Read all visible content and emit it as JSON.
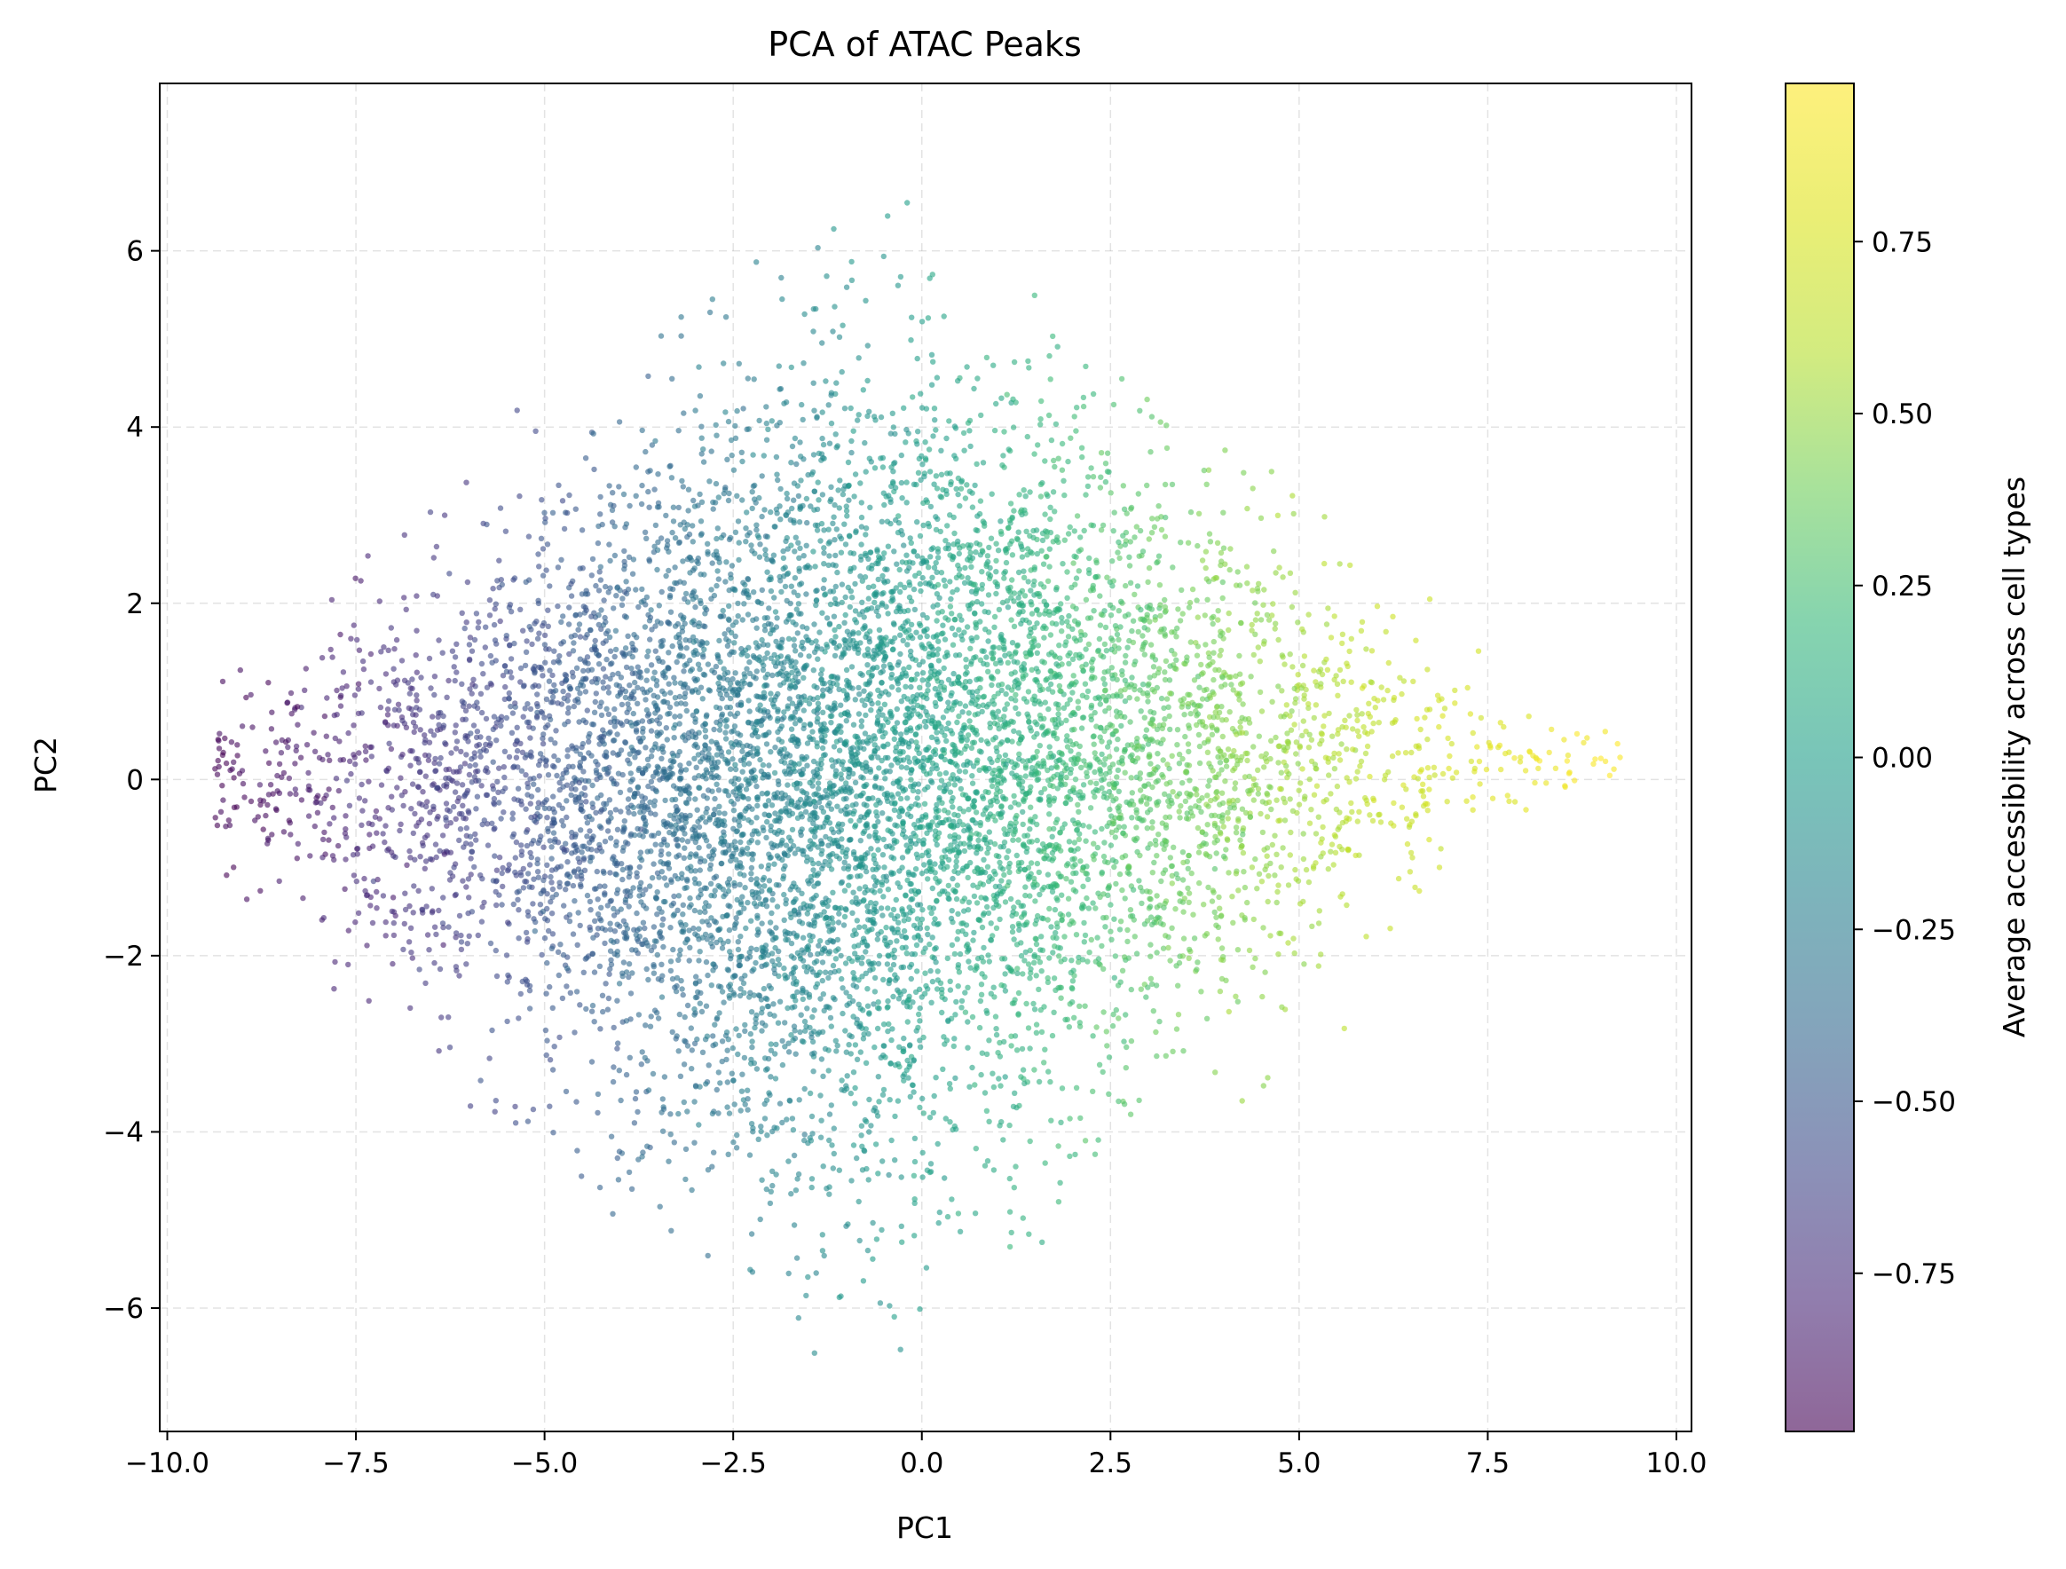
{
  "chart_data": {
    "type": "scatter",
    "title": "PCA of ATAC Peaks",
    "xlabel": "PC1",
    "ylabel": "PC2",
    "xlim": [
      -10.1,
      10.2
    ],
    "ylim": [
      -7.4,
      7.9
    ],
    "xticks": [
      -10.0,
      -7.5,
      -5.0,
      -2.5,
      0.0,
      2.5,
      5.0,
      7.5,
      10.0
    ],
    "xtick_labels": [
      "−10.0",
      "−7.5",
      "−5.0",
      "−2.5",
      "0.0",
      "2.5",
      "5.0",
      "7.5",
      "10.0"
    ],
    "yticks": [
      6,
      4,
      2,
      0,
      -2,
      -4,
      -6
    ],
    "ytick_labels": [
      "6",
      "4",
      "2",
      "0",
      "−2",
      "−4",
      "−6"
    ],
    "grid": true,
    "colormap": "viridis",
    "marker_alpha": 0.6,
    "point_cloud": {
      "shape": "diamond-shaped cloud of ATAC peaks",
      "x_range": [
        -9.3,
        9.3
      ],
      "y_range": [
        -6.8,
        7.2
      ],
      "left_apex": [
        -9.2,
        0.0
      ],
      "right_apex": [
        7.5,
        0.5
      ],
      "color_gradient": "color increases with PC1 (purple at left, yellow at right)"
    },
    "colorbar": {
      "label": "Average accessibility across cell types",
      "range": [
        -0.98,
        0.98
      ],
      "ticks": [
        0.75,
        0.5,
        0.25,
        0.0,
        -0.25,
        -0.5,
        -0.75
      ],
      "tick_labels": [
        "0.75",
        "0.50",
        "0.25",
        "0.00",
        "−0.25",
        "−0.50",
        "−0.75"
      ]
    }
  }
}
